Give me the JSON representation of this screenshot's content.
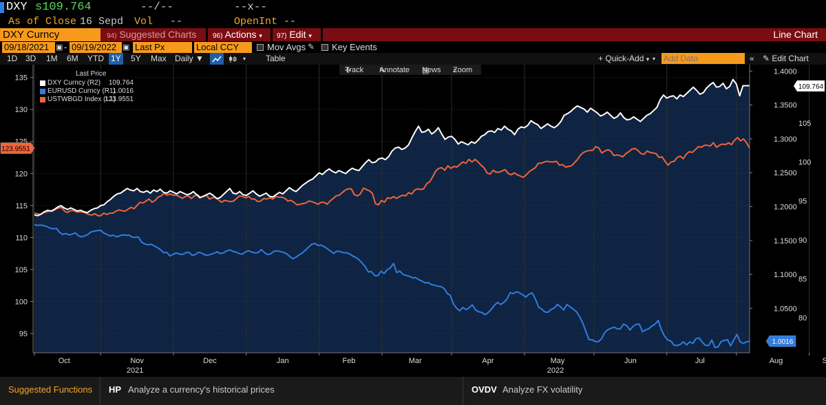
{
  "header": {
    "ticker": "DXY",
    "price_prefix": "s",
    "price": "109.764",
    "change": "--/--",
    "high_low": "--x--",
    "as_of_label": "As of Close",
    "as_of_date": "16 Sepd",
    "vol_label": "Vol",
    "vol_value": "--",
    "openint_label": "OpenInt",
    "openint_value": "--"
  },
  "toolbar": {
    "security": "DXY Curncy",
    "suggested_num": "94)",
    "suggested_label": "Suggested Charts",
    "actions_num": "96)",
    "actions_label": "Actions",
    "edit_num": "97)",
    "edit_label": "Edit",
    "chart_title": "Line Chart"
  },
  "params": {
    "start_date": "09/18/2021",
    "dash": "-",
    "end_date": "09/19/2022",
    "field": "Last Px",
    "currency": "Local CCY",
    "mov_avgs": "Mov Avgs",
    "key_events": "Key Events"
  },
  "ranges": {
    "items": [
      "1D",
      "3D",
      "1M",
      "6M",
      "YTD",
      "1Y",
      "5Y",
      "Max"
    ],
    "selected": "1Y",
    "frequency": "Daily",
    "table_label": "Table",
    "quick_add": "Quick-Add",
    "add_data_placeholder": "Add Data",
    "edit_chart": "Edit Chart"
  },
  "tools": {
    "track": "Track",
    "annotate": "Annotate",
    "news": "News",
    "zoom": "Zoom"
  },
  "legend": {
    "header": "Last Price",
    "items": [
      {
        "name": "DXY Curncy  (R2)",
        "value": "109.764",
        "color": "#ffffff"
      },
      {
        "name": "EURUSD Curncy  (R1)",
        "value": "1.0016",
        "color": "#2f7de1"
      },
      {
        "name": "USTWBGD Index  (L1)",
        "value": "123.9551",
        "color": "#f0643a"
      }
    ]
  },
  "footer": {
    "suggested": "Suggested Functions",
    "f1_code": "HP",
    "f1_desc": "Analyze a currency's historical prices",
    "f2_code": "OVDV",
    "f2_desc": "Analyze FX volatility"
  },
  "chart_data": {
    "type": "line",
    "title": "Line Chart",
    "x_labels": [
      "Oct",
      "Nov",
      "Dec",
      "Jan",
      "Feb",
      "Mar",
      "Apr",
      "May",
      "Jun",
      "Jul",
      "Aug",
      "Sep"
    ],
    "year_labels": [
      {
        "after": "Nov",
        "text": "2021"
      },
      {
        "after": "May",
        "text": "2022"
      }
    ],
    "axes": {
      "left_L1": {
        "min": 92,
        "max": 137,
        "ticks": [
          95,
          100,
          105,
          110,
          115,
          120,
          125,
          130,
          135
        ]
      },
      "right_R1": {
        "min": 0.9845,
        "max": 1.4095,
        "ticks": [
          "1.0500",
          "1.1000",
          "1.1500",
          "1.2000",
          "1.2500",
          "1.3000",
          "1.3500",
          "1.4000"
        ]
      },
      "right_R2": {
        "min": 75.5,
        "max": 112.5,
        "ticks": [
          80,
          85,
          90,
          95,
          100,
          105
        ]
      }
    },
    "last_value_labels": {
      "L1": "123.9551",
      "R1": "1.0016",
      "R2": "109.764"
    },
    "series": [
      {
        "name": "DXY Curncy",
        "axis": "R2",
        "color": "#ffffff",
        "fill": "#0f2442",
        "values": [
          93.2,
          93.1,
          93.3,
          93.6,
          93.8,
          93.7,
          93.9,
          94.2,
          94.4,
          94.1,
          93.9,
          94.1,
          93.9,
          93.7,
          93.8,
          93.6,
          93.5,
          93.8,
          94.0,
          94.1,
          94.4,
          94.5,
          94.9,
          95.2,
          95.6,
          95.9,
          96.0,
          96.3,
          96.6,
          96.4,
          96.3,
          96.6,
          96.2,
          96.1,
          96.3,
          96.0,
          96.4,
          96.2,
          96.5,
          96.1,
          96.0,
          96.3,
          96.1,
          95.9,
          96.2,
          96.0,
          95.8,
          95.9,
          96.2,
          95.8,
          95.4,
          95.6,
          95.8,
          96.0,
          95.7,
          95.3,
          95.4,
          95.8,
          96.2,
          96.6,
          96.0,
          95.9,
          96.2,
          95.8,
          95.7,
          96.0,
          96.3,
          95.9,
          95.6,
          95.8,
          96.0,
          95.6,
          95.5,
          95.8,
          96.1,
          95.9,
          96.3,
          96.7,
          96.4,
          96.2,
          96.6,
          97.0,
          97.3,
          97.6,
          97.8,
          98.2,
          98.6,
          98.4,
          98.8,
          99.1,
          98.8,
          98.6,
          98.9,
          98.7,
          98.5,
          98.9,
          99.2,
          99.0,
          98.9,
          99.4,
          99.9,
          100.3,
          99.9,
          100.0,
          100.4,
          100.5,
          100.3,
          100.7,
          101.4,
          101.8,
          101.9,
          101.6,
          101.8,
          102.2,
          103.1,
          103.9,
          104.6,
          103.8,
          103.9,
          104.2,
          103.6,
          103.9,
          104.4,
          103.6,
          102.9,
          103.2,
          103.3,
          102.9,
          102.3,
          102.6,
          102.4,
          102.2,
          102.6,
          102.4,
          102.8,
          103.3,
          103.5,
          103.9,
          104.0,
          103.8,
          104.3,
          104.1,
          104.6,
          104.2,
          104.0,
          103.5,
          104.2,
          104.5,
          104.4,
          104.7,
          105.3,
          105.0,
          104.8,
          104.3,
          104.6,
          104.9,
          104.6,
          104.4,
          104.7,
          105.2,
          106.0,
          106.2,
          106.5,
          106.9,
          107.2,
          107.0,
          106.8,
          106.4,
          106.9,
          106.6,
          106.3,
          105.9,
          106.1,
          106.4,
          106.0,
          105.6,
          105.8,
          106.3,
          105.7,
          105.4,
          105.5,
          105.8,
          105.5,
          105.2,
          105.6,
          106.0,
          106.2,
          106.6,
          107.0,
          108.0,
          108.6,
          108.2,
          108.4,
          108.5,
          108.1,
          108.6,
          108.4,
          108.8,
          109.2,
          109.6,
          109.2,
          108.7,
          108.9,
          109.5,
          109.9,
          110.2,
          109.6,
          109.7,
          110.1,
          109.4,
          109.7,
          110.6,
          110.0,
          108.5,
          109.8,
          109.8,
          109.8
        ]
      },
      {
        "name": "EURUSD Curncy",
        "axis": "R1",
        "color": "#2f7de1",
        "values": [
          1.1736,
          1.1724,
          1.1728,
          1.172,
          1.1705,
          1.1681,
          1.1674,
          1.168,
          1.162,
          1.159,
          1.1604,
          1.1583,
          1.1596,
          1.1612,
          1.157,
          1.1555,
          1.1571,
          1.159,
          1.1627,
          1.1639,
          1.1646,
          1.1652,
          1.1612,
          1.1591,
          1.1566,
          1.1582,
          1.1554,
          1.1569,
          1.1585,
          1.1578,
          1.158,
          1.1551,
          1.1547,
          1.1554,
          1.1477,
          1.1452,
          1.1436,
          1.1446,
          1.1422,
          1.1396,
          1.1366,
          1.1321,
          1.1327,
          1.1273,
          1.1298,
          1.1318,
          1.1302,
          1.1294,
          1.1321,
          1.1327,
          1.1284,
          1.129,
          1.1326,
          1.1318,
          1.129,
          1.1283,
          1.1297,
          1.1312,
          1.1334,
          1.1308,
          1.1318,
          1.1347,
          1.1362,
          1.134,
          1.133,
          1.1308,
          1.1299,
          1.1333,
          1.135,
          1.133,
          1.1318,
          1.1321,
          1.1366,
          1.1324,
          1.1292,
          1.1305,
          1.1342,
          1.1347,
          1.1339,
          1.1325,
          1.1307,
          1.1268,
          1.1232,
          1.1254,
          1.1287,
          1.1318,
          1.1356,
          1.1403,
          1.1445,
          1.1459,
          1.1427,
          1.1433,
          1.1409,
          1.138,
          1.1344,
          1.131,
          1.1344,
          1.1338,
          1.1321,
          1.132,
          1.1305,
          1.1273,
          1.1251,
          1.1219,
          1.1169,
          1.1115,
          1.1037,
          1.1042,
          1.0983,
          1.098,
          1.1047,
          1.1015,
          1.107,
          1.1099,
          1.1163,
          1.1027,
          1.105,
          1.1,
          1.0985,
          1.0973,
          1.095,
          1.0953,
          1.0923,
          1.0902,
          1.0876,
          1.0881,
          1.0851,
          1.0841,
          1.0826,
          1.0821,
          1.0795,
          1.0722,
          1.069,
          1.0562,
          1.0502,
          1.0465,
          1.0513,
          1.048,
          1.051,
          1.0551,
          1.0477,
          1.0449,
          1.044,
          1.0406,
          1.0435,
          1.0485,
          1.0546,
          1.0586,
          1.0557,
          1.0587,
          1.0638,
          1.0731,
          1.0717,
          1.0745,
          1.0728,
          1.0699,
          1.0667,
          1.0708,
          1.0727,
          1.0639,
          1.0522,
          1.0489,
          1.0447,
          1.0441,
          1.0485,
          1.0503,
          1.0558,
          1.0521,
          1.0476,
          1.0557,
          1.0523,
          1.0489,
          1.0453,
          1.0381,
          1.0289,
          1.0166,
          1.0038,
          1.0037,
          1.001,
          1.0008,
          1.005,
          1.0142,
          1.0186,
          1.0206,
          1.0222,
          1.0196,
          1.0197,
          1.0269,
          1.0245,
          1.018,
          1.0232,
          1.0265,
          1.0266,
          1.0155,
          1.0181,
          1.0199,
          1.024,
          1.0266,
          1.0322,
          1.0185,
          1.009,
          1.0035,
          1.0017,
          0.9958,
          0.995,
          0.9968,
          1.0005,
          0.9962,
          1.0005,
          0.9983,
          1.0055,
          1.0063,
          1.0,
          0.9954,
          0.9951,
          1.0034,
          0.9922,
          0.9932,
          1.0011,
          1.0027,
          1.0038,
          0.9947,
          1.0038,
          1.0114,
          1.0006,
          0.9983,
          1.0004,
          1.0016
        ]
      },
      {
        "name": "USTWBGD Index",
        "axis": "L1",
        "color": "#f0643a",
        "values": [
          113.8,
          113.7,
          113.6,
          113.9,
          114.0,
          114.1,
          114.1,
          114.4,
          114.6,
          114.7,
          114.1,
          113.9,
          114.2,
          114.2,
          114.0,
          114.0,
          114.0,
          113.8,
          113.6,
          113.5,
          113.7,
          113.4,
          113.4,
          113.8,
          113.6,
          113.8,
          113.8,
          114.1,
          114.3,
          114.2,
          114.1,
          114.4,
          114.7,
          114.5,
          115.0,
          115.5,
          115.4,
          115.7,
          116.0,
          115.5,
          115.8,
          116.3,
          116.5,
          116.9,
          116.6,
          116.8,
          116.6,
          116.6,
          116.4,
          116.1,
          116.4,
          116.5,
          116.1,
          116.5,
          116.7,
          116.3,
          116.4,
          116.6,
          116.0,
          116.2,
          116.3,
          115.9,
          115.5,
          115.8,
          115.7,
          115.6,
          115.7,
          116.1,
          116.5,
          116.4,
          116.2,
          116.4,
          116.0,
          116.0,
          115.6,
          115.7,
          116.1,
          116.0,
          116.2,
          116.0,
          116.4,
          116.3,
          116.3,
          116.1,
          115.7,
          115.8,
          115.5,
          115.1,
          115.2,
          115.3,
          115.4,
          115.7,
          115.6,
          115.4,
          115.2,
          115.5,
          115.5,
          115.2,
          115.7,
          116.1,
          116.5,
          116.6,
          117.0,
          117.4,
          117.6,
          117.6,
          116.7,
          116.5,
          116.8,
          117.7,
          117.5,
          117.3,
          116.9,
          115.3,
          115.1,
          115.8,
          115.5,
          116.2,
          116.1,
          116.4,
          116.1,
          116.4,
          116.6,
          116.5,
          117.0,
          116.8,
          117.4,
          117.6,
          117.5,
          117.6,
          118.4,
          118.7,
          119.5,
          120.4,
          120.8,
          120.9,
          120.5,
          121.2,
          120.8,
          121.1,
          121.0,
          121.4,
          121.8,
          121.6,
          122.2,
          121.8,
          122.2,
          121.8,
          121.3,
          120.9,
          120.1,
          119.9,
          120.5,
          120.2,
          120.2,
          120.4,
          120.6,
          120.0,
          119.8,
          120.1,
          119.8,
          119.6,
          119.4,
          119.8,
          120.3,
          120.6,
          120.9,
          121.6,
          121.6,
          121.8,
          121.9,
          121.8,
          121.8,
          121.9,
          121.3,
          121.4,
          121.0,
          121.1,
          121.2,
          121.7,
          122.2,
          122.9,
          123.3,
          123.5,
          123.6,
          123.6,
          124.2,
          124.0,
          123.2,
          123.5,
          123.7,
          123.5,
          122.8,
          122.9,
          122.8,
          122.6,
          123.1,
          123.4,
          123.8,
          123.9,
          123.6,
          123.1,
          123.0,
          123.5,
          123.3,
          123.2,
          123.1,
          122.5,
          122.6,
          121.9,
          121.3,
          121.8,
          121.9,
          122.5,
          122.7,
          122.3,
          123.0,
          123.4,
          123.3,
          123.7,
          124.2,
          124.1,
          124.4,
          124.4,
          124.3,
          124.8,
          124.1,
          124.4,
          124.6,
          124.5,
          124.8,
          124.5,
          125.2,
          125.6,
          125.1,
          125.4,
          124.8,
          124.0
        ]
      }
    ]
  }
}
